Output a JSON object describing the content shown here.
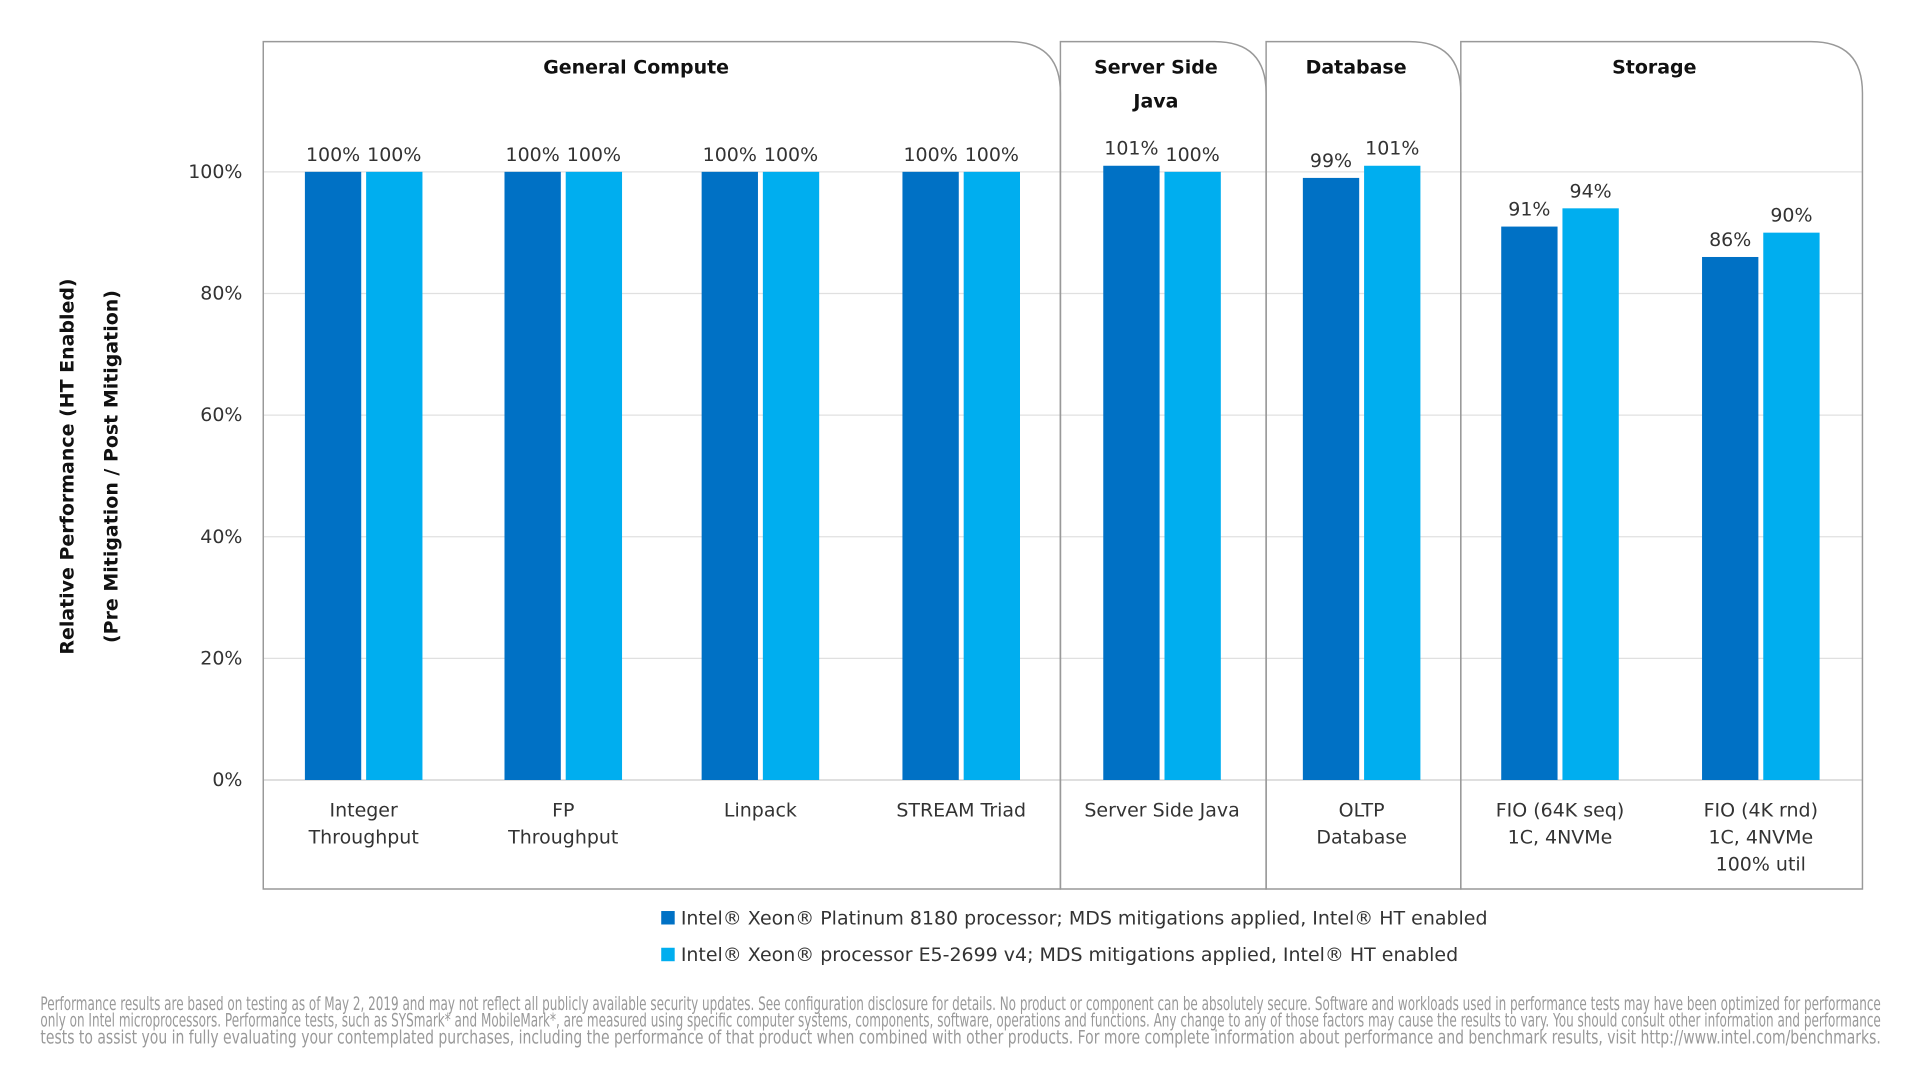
{
  "chart_data": {
    "type": "bar",
    "y_label": [
      "Relative Performance (HT Enabled)",
      "(Pre Mitigation / Post Mitigation)"
    ],
    "groups": [
      "General Compute",
      "Server Side\nJava",
      "Database",
      "Storage"
    ],
    "categories": [
      "Integer\nThroughput",
      "FP\nThroughput",
      "Linpack",
      "STREAM Triad",
      "Server Side Java",
      "OLTP\nDatabase",
      "FIO (64K seq)\n1C, 4NVMe",
      "FIO (4K rnd)\n1C, 4NVMe\n100% util"
    ],
    "series": [
      {
        "name": "Intel® Xeon® Platinum 8180 processor; MDS mitigations applied, Intel® HT enabled",
        "color": "#0071c5",
        "values": [
          100,
          100,
          100,
          100,
          101,
          99,
          91,
          86
        ],
        "value_labels": [
          "100%",
          "100%",
          "100%",
          "100%",
          "101%",
          "99%",
          "91%",
          "86%"
        ]
      },
      {
        "name": "Intel® Xeon® processor E5-2699 v4; MDS mitigations applied, Intel® HT enabled",
        "color": "#00aeef",
        "values": [
          100,
          100,
          100,
          100,
          100,
          101,
          94,
          90
        ],
        "value_labels": [
          "100%",
          "100%",
          "100%",
          "100%",
          "100%",
          "101%",
          "94%",
          "90%"
        ]
      }
    ],
    "ylim": [
      0,
      120
    ],
    "yticks": [
      {
        "value": 0,
        "label": "0%"
      },
      {
        "value": 20,
        "label": "20%"
      },
      {
        "value": 40,
        "label": "40%"
      },
      {
        "value": 60,
        "label": "60%"
      },
      {
        "value": 80,
        "label": "80%"
      },
      {
        "value": 100,
        "label": "100%"
      }
    ],
    "grid": true,
    "footnote": [
      "Performance results are based on testing as of May 2, 2019 and may not reflect all publicly available security updates. See configuration disclosure for details. No product or component can be absolutely secure. Software and workloads used in performance tests may have been optimized for performance",
      "only on Intel microprocessors. Performance tests, such as SYSmark* and MobileMark*, are measured using specific computer systems, components, software, operations and functions.  Any change to any of those factors may cause the results to vary.  You should consult other information and performance",
      "tests to assist you in fully evaluating your contemplated purchases, including the performance of that product when combined with other products. For more complete information about performance and benchmark results, visit http://www.intel.com/benchmarks."
    ]
  }
}
